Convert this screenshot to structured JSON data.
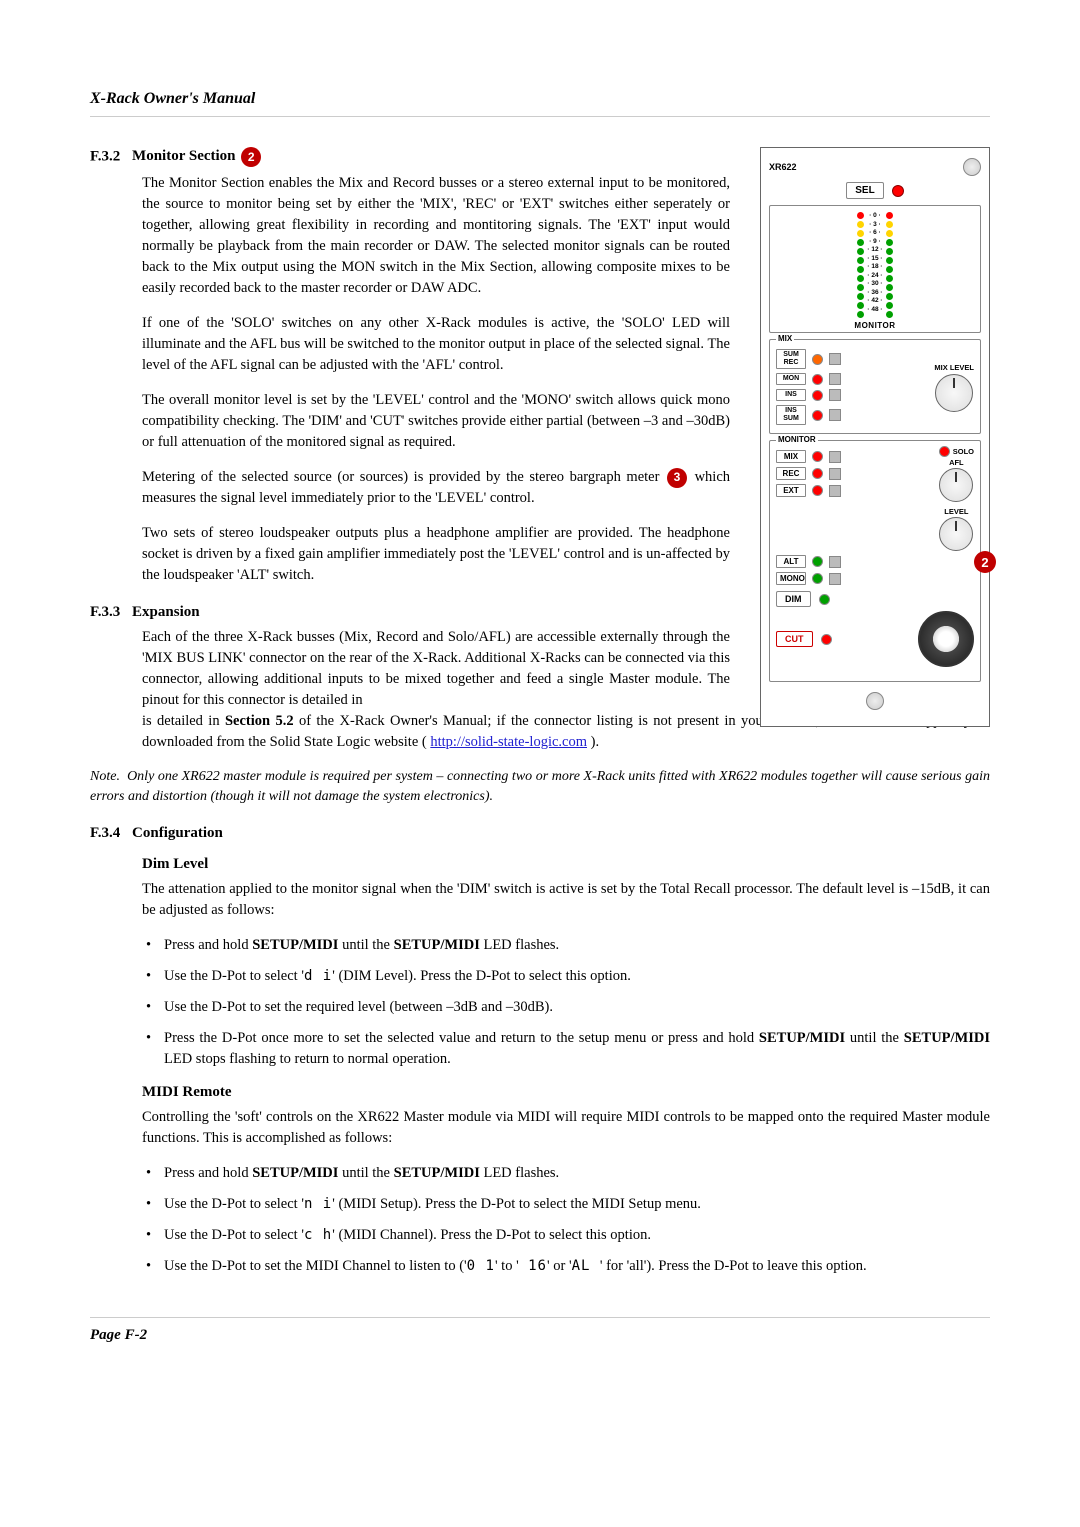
{
  "header": {
    "title": "X-Rack Owner's Manual"
  },
  "badges": {
    "b2": "2",
    "b3": "3"
  },
  "sec_f32": {
    "num": "F.3.2",
    "title": "Monitor Section",
    "p1": "The Monitor Section enables the Mix and Record busses or a stereo external input to be monitored, the source to monitor being set by either the 'MIX', 'REC' or 'EXT' switches either seperately or together, allowing great flexibility in recording and montitoring signals. The 'EXT' input would normally be playback from the main recorder or DAW. The selected monitor signals can be routed back to the Mix output using the MON switch in the Mix Section, allowing composite mixes to be easily recorded back to the master recorder or DAW ADC.",
    "p2": "If one of the 'SOLO' switches on any other X-Rack modules is active, the 'SOLO' LED will illuminate and the AFL bus will be switched to the monitor output in place of the selected signal. The level of the AFL signal can be adjusted with the 'AFL' control.",
    "p3": "The overall monitor level is set by the 'LEVEL' control and the 'MONO' switch allows quick mono compatibility checking. The 'DIM' and 'CUT' switches provide either partial (between –3 and –30dB) or full attenuation of the monitored signal as required.",
    "p4a": "Metering of the selected source (or sources) is provided by the stereo bargraph meter ",
    "p4b": " which measures the signal level immediately prior to the 'LEVEL' control.",
    "p5": "Two sets of stereo loudspeaker outputs plus a headphone amplifier are provided. The headphone socket is driven by a fixed gain amplifier immediately post the 'LEVEL' control and is un-affected by the loudspeaker 'ALT' switch."
  },
  "sec_f33": {
    "num": "F.3.3",
    "title": "Expansion",
    "p1": "Each of the three X-Rack busses (Mix, Record and Solo/AFL) are accessible externally through the 'MIX BUS LINK' connector on the rear of the X-Rack. Additional X-Racks can be connected via this connector, allowing additional inputs to be mixed together and feed a single Master module. The pinout for this connector is detailed in ",
    "p1b": "Section 5.2",
    "p1c": " of the X-Rack Owner's Manual; if the connector listing is not present in your manual, a more recent copy may be downloaded from the Solid State Logic website ( ",
    "link": "http://solid-state-logic.com",
    "p1d": " )."
  },
  "note": {
    "label": "Note.",
    "text": "Only one XR622 master module is required per system – connecting two or more X-Rack units fitted with XR622 modules together will cause serious gain errors and distortion (though it will not damage the system electronics)."
  },
  "sec_f34": {
    "num": "F.3.4",
    "title": "Configuration",
    "dim": {
      "title": "Dim Level",
      "p1": "The attenation applied to the monitor signal when the 'DIM' switch is active is set by the Total Recall processor. The default level is –15dB, it can be adjusted as follows:",
      "b1a": "Press and hold ",
      "b1b": "SETUP/MIDI",
      "b1c": " until the ",
      "b1d": "SETUP/MIDI",
      "b1e": " LED flashes.",
      "b2a": "Use the D-Pot to select '",
      "b2seg": "d i",
      "b2b": "' (DIM Level). Press the D-Pot to select this option.",
      "b3": "Use the D-Pot to set the required level (between –3dB and –30dB).",
      "b4a": "Press the D-Pot once more to set the selected value and return to the setup menu or press and hold ",
      "b4b": "SETUP/MIDI",
      "b4c": " until the ",
      "b4d": "SETUP/MIDI",
      "b4e": " LED stops flashing to return to normal operation."
    },
    "midi": {
      "title": "MIDI Remote",
      "p1": "Controlling the 'soft' controls on the XR622 Master module via MIDI will require MIDI controls to be mapped onto the required Master module functions. This is accomplished as follows:",
      "b1a": "Press and hold ",
      "b1b": "SETUP/MIDI",
      "b1c": " until the ",
      "b1d": "SETUP/MIDI",
      "b1e": " LED flashes.",
      "b2a": "Use the D-Pot to select '",
      "b2seg": "n i",
      "b2b": "' (MIDI Setup). Press the D-Pot to select the MIDI Setup menu.",
      "b3a": "Use the D-Pot to select '",
      "b3seg": "c h",
      "b3b": "' (MIDI Channel). Press the D-Pot to select this option.",
      "b4a": "Use the D-Pot to set the MIDI Channel to listen to ('",
      "b4seg1": "0 1",
      "b4b": "' to '",
      "b4seg2": " 16",
      "b4c": "' or '",
      "b4seg3": "AL ",
      "b4d": "' for 'all'). Press the D-Pot to leave this option."
    }
  },
  "footer": {
    "text": "Page F-2"
  },
  "module": {
    "model": "XR622",
    "sel": "SEL",
    "meter": {
      "scale": [
        "0",
        "3",
        "6",
        "9",
        "12",
        "15",
        "18",
        "24",
        "30",
        "36",
        "42",
        "48"
      ],
      "led_colors": [
        "#ff0000",
        "#ffd400",
        "#ffd400",
        "#00a000",
        "#00a000",
        "#00a000",
        "#00a000",
        "#00a000",
        "#00a000",
        "#00a000",
        "#00a000",
        "#00a000"
      ],
      "title": "MONITOR"
    },
    "mix_box": {
      "title": "MIX",
      "rows": [
        "SUM\nREC",
        "MON",
        "INS",
        "INS\nSUM"
      ],
      "knob_label": "MIX LEVEL"
    },
    "mon_box": {
      "title": "MONITOR",
      "rows": [
        "MIX",
        "REC",
        "EXT",
        "ALT",
        "MONO"
      ],
      "solo": "SOLO",
      "afl": "AFL",
      "level": "LEVEL",
      "dim": "DIM",
      "cut": "CUT"
    },
    "badge": "2"
  }
}
